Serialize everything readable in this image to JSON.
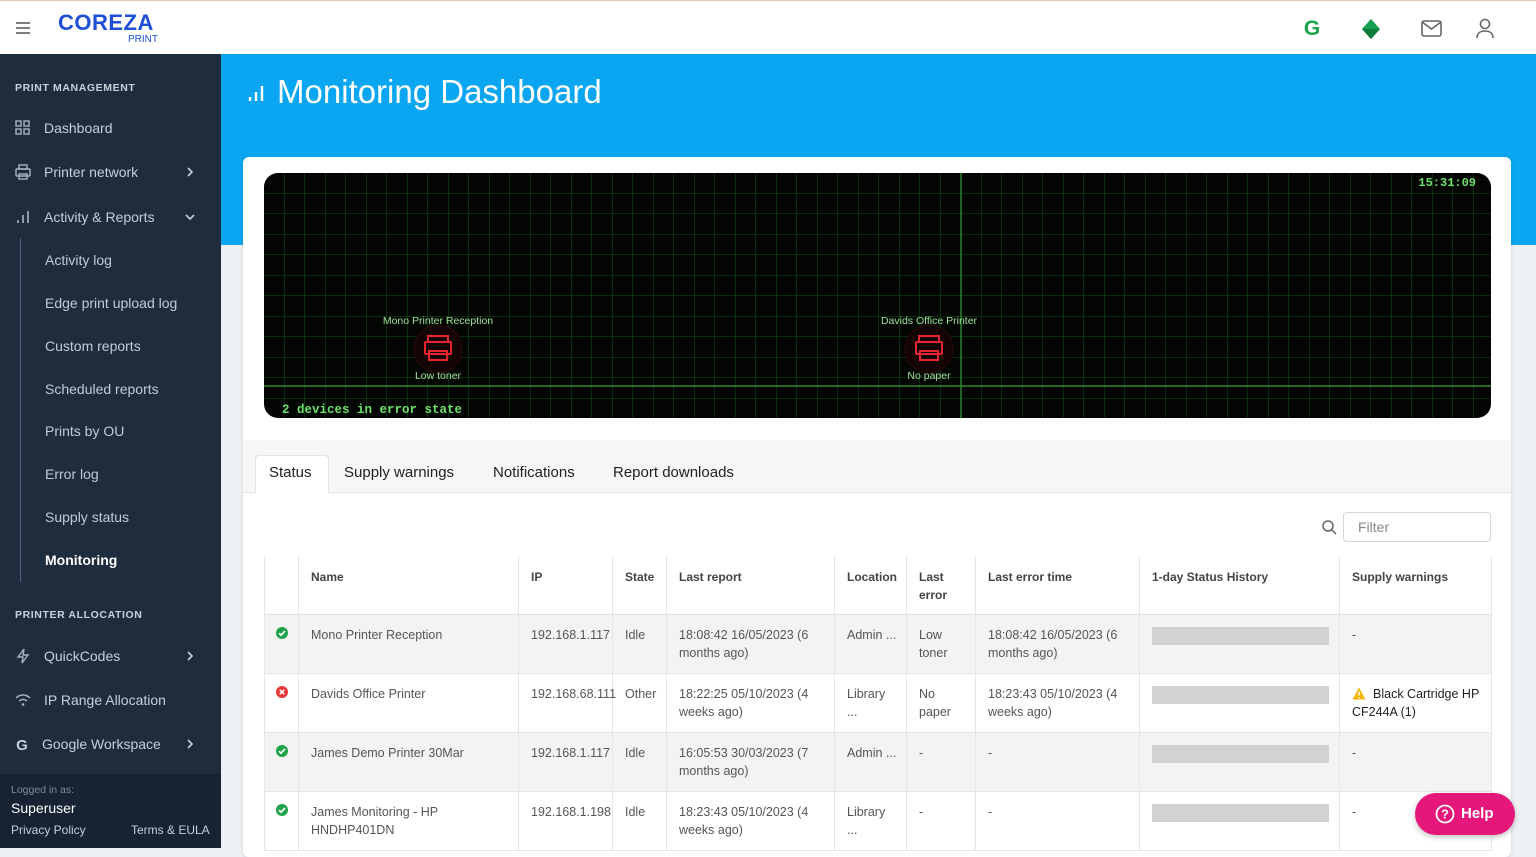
{
  "topbar": {
    "logo": "COREZA",
    "logo_sub": "PRINT"
  },
  "sidebar": {
    "sections": [
      {
        "title": "PRINT MANAGEMENT",
        "items": [
          "Dashboard",
          "Printer network",
          "Activity & Reports"
        ],
        "subitems": [
          "Activity log",
          "Edge print upload log",
          "Custom reports",
          "Scheduled reports",
          "Prints by OU",
          "Error log",
          "Supply status",
          "Monitoring"
        ]
      },
      {
        "title": "PRINTER ALLOCATION",
        "items": [
          "QuickCodes",
          "IP Range Allocation",
          "Google Workspace"
        ]
      }
    ],
    "footer": {
      "label": "Logged in as:",
      "user": "Superuser",
      "privacy": "Privacy Policy",
      "terms": "Terms & EULA"
    }
  },
  "page": {
    "title": "Monitoring Dashboard"
  },
  "monitor": {
    "clock": "15:31:09",
    "devices": [
      {
        "name": "Mono Printer Reception",
        "status": "Low toner"
      },
      {
        "name": "Davids Office Printer",
        "status": "No paper"
      }
    ],
    "summary": "2 devices in error state"
  },
  "tabs": [
    "Status",
    "Supply warnings",
    "Notifications",
    "Report downloads"
  ],
  "filter": {
    "placeholder": "Filter"
  },
  "table": {
    "columns": [
      "Name",
      "IP",
      "State",
      "Last report",
      "Location",
      "Last error",
      "Last error time",
      "1-day Status History",
      "Supply warnings"
    ],
    "rows": [
      {
        "status": "ok",
        "cells": [
          "Mono Printer Reception",
          "192.168.1.117",
          "Idle",
          "18:08:42 16/05/2023 (6 months ago)",
          "Admin ...",
          "Low toner",
          "18:08:42 16/05/2023 (6 months ago)"
        ],
        "supply": "-",
        "warning": false
      },
      {
        "status": "error",
        "cells": [
          "Davids Office Printer",
          "192.168.68.111",
          "Other",
          "18:22:25 05/10/2023 (4 weeks ago)",
          "Library ...",
          "No paper",
          "18:23:43 05/10/2023 (4 weeks ago)"
        ],
        "supply": "Black Cartridge HP CF244A (1)",
        "warning": true
      },
      {
        "status": "ok",
        "cells": [
          "James Demo Printer 30Mar",
          "192.168.1.117",
          "Idle",
          "16:05:53 30/03/2023 (7 months ago)",
          "Admin ...",
          "-",
          "-"
        ],
        "supply": "-",
        "warning": false
      },
      {
        "status": "ok",
        "cells": [
          "James Monitoring - HP HNDHP401DN",
          "192.168.1.198",
          "Idle",
          "18:23:43 05/10/2023 (4 weeks ago)",
          "Library ...",
          "-",
          "-"
        ],
        "supply": "-",
        "warning": false
      }
    ]
  },
  "help": "Help"
}
